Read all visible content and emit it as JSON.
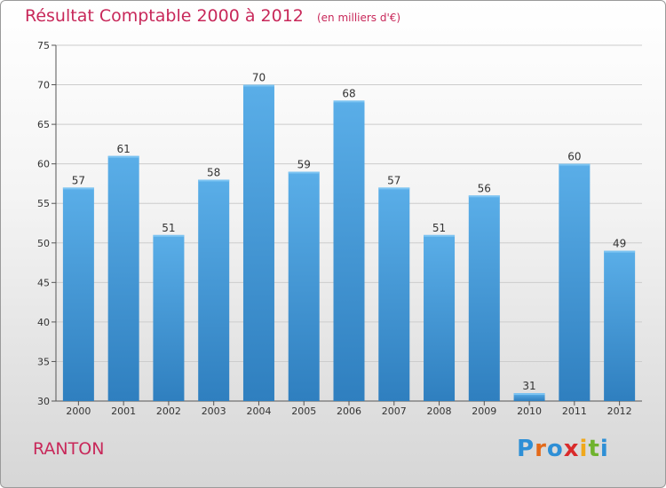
{
  "header": {
    "title": "Résultat Comptable 2000 à 2012",
    "subtitle": "(en milliers d'€)"
  },
  "footer": {
    "commune": "RANTON",
    "brand": "Proxiti",
    "brand_letters": [
      {
        "ch": "P",
        "color": "#2e8fd6"
      },
      {
        "ch": "r",
        "color": "#e36a1a"
      },
      {
        "ch": "o",
        "color": "#2e8fd6"
      },
      {
        "ch": "x",
        "color": "#d92b2b"
      },
      {
        "ch": "i",
        "color": "#f0a81b"
      },
      {
        "ch": "t",
        "color": "#6fb32d"
      },
      {
        "ch": "i",
        "color": "#2e8fd6"
      }
    ]
  },
  "colors": {
    "bar_top": "#5aaee8",
    "bar_bottom": "#2f7fbf",
    "accent": "#c8285a",
    "grid": "#cccccc"
  },
  "chart_data": {
    "type": "bar",
    "categories": [
      "2000",
      "2001",
      "2002",
      "2003",
      "2004",
      "2005",
      "2006",
      "2007",
      "2008",
      "2009",
      "2010",
      "2011",
      "2012"
    ],
    "values": [
      57,
      61,
      51,
      58,
      70,
      59,
      68,
      57,
      51,
      56,
      31,
      60,
      49
    ],
    "title": "Résultat Comptable 2000 à 2012",
    "subtitle": "(en milliers d'€)",
    "xlabel": "",
    "ylabel": "",
    "ylim": [
      30,
      75
    ],
    "yticks": [
      30,
      35,
      40,
      45,
      50,
      55,
      60,
      65,
      70,
      75
    ],
    "grid": true,
    "data_labels": true
  }
}
